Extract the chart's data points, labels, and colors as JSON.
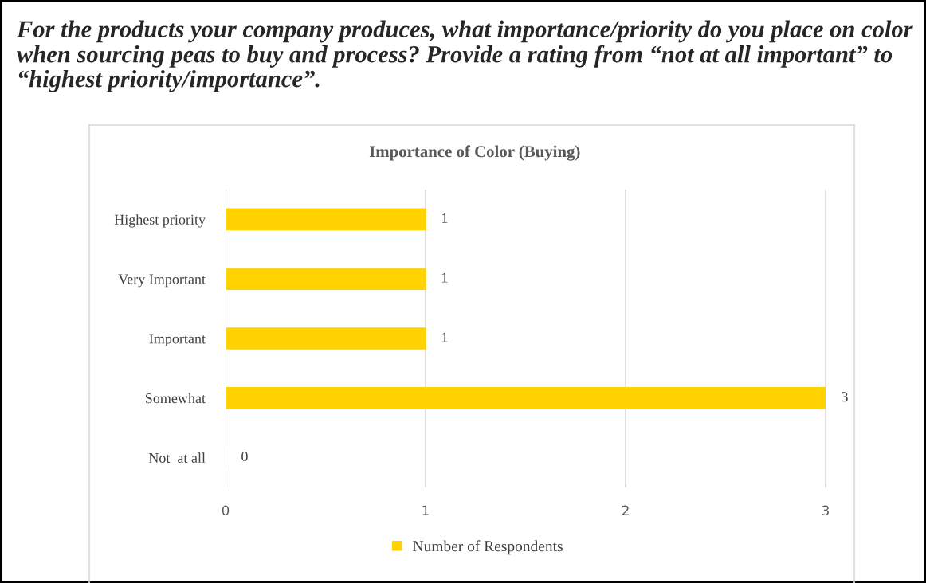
{
  "chart_data": {
    "type": "bar",
    "orientation": "horizontal",
    "title": "For the products your company produces, what importance/priority do you place on color when sourcing peas to buy and process? Provide a rating from “not at all important” to “highest priority/importance”.",
    "subtitle": "Importance of Color (Buying)",
    "categories": [
      "Highest priority",
      "Very Important",
      "Important",
      "Somewhat",
      "Not  at all"
    ],
    "series": [
      {
        "name": "Number of Respondents",
        "color": "#ffd200",
        "values": [
          1,
          1,
          1,
          3,
          0
        ]
      }
    ],
    "xlim": [
      0,
      3
    ],
    "xticks": [
      0,
      1,
      2,
      3
    ],
    "grid": "x",
    "legend": "bottom",
    "data_labels": true
  }
}
